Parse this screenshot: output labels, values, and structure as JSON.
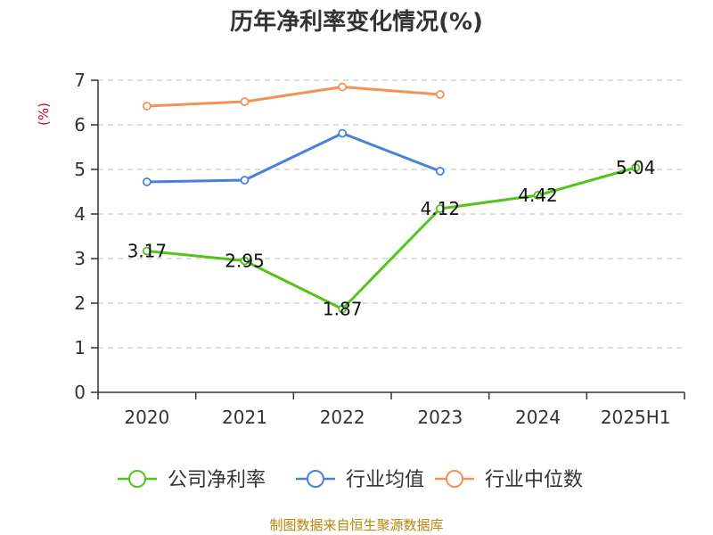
{
  "chart_data": {
    "type": "line",
    "title": "历年净利率变化情况(%)",
    "ylabel": "(%)",
    "xlabel": "",
    "categories": [
      "2020",
      "2021",
      "2022",
      "2023",
      "2024",
      "2025H1"
    ],
    "ylim": [
      0,
      7
    ],
    "yticks": [
      0,
      1,
      2,
      3,
      4,
      5,
      6,
      7
    ],
    "grid": "horizontal-dashed",
    "legend_position": "bottom",
    "series": [
      {
        "name": "公司净利率",
        "values": [
          3.17,
          2.95,
          1.87,
          4.12,
          4.42,
          5.04
        ],
        "color": "#52c41a",
        "labels": [
          "3.17",
          "2.95",
          "1.87",
          "4.12",
          "4.42",
          "5.04"
        ]
      },
      {
        "name": "行业均值",
        "values": [
          4.72,
          4.76,
          5.81,
          4.96,
          null,
          null
        ],
        "color": "#4a7fdc"
      },
      {
        "name": "行业中位数",
        "values": [
          6.42,
          6.52,
          6.85,
          6.68,
          null,
          null
        ],
        "color": "#f39157"
      }
    ],
    "ylabel_color": "#d9001b"
  },
  "footer": {
    "source": "制图数据来自恒生聚源数据库"
  }
}
